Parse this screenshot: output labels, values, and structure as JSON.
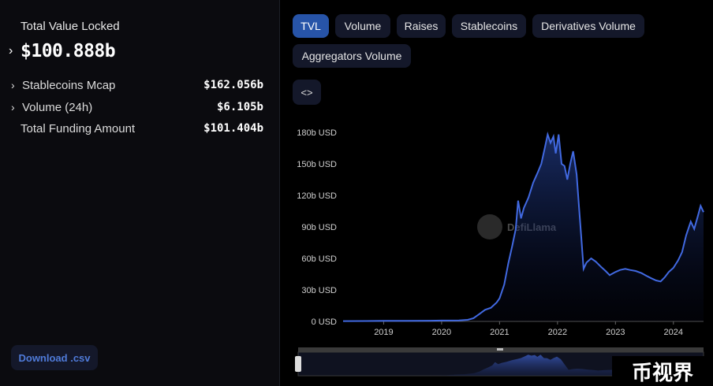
{
  "summary": {
    "tvl_label": "Total Value Locked",
    "tvl_value": "$100.888b",
    "rows": [
      {
        "label": "Stablecoins Mcap",
        "value": "$162.056b",
        "expandable": true
      },
      {
        "label": "Volume (24h)",
        "value": "$6.105b",
        "expandable": true
      },
      {
        "label": "Total Funding Amount",
        "value": "$101.404b",
        "expandable": false
      }
    ],
    "download_label": "Download .csv"
  },
  "tabs": [
    {
      "label": "TVL",
      "active": true
    },
    {
      "label": "Volume",
      "active": false
    },
    {
      "label": "Raises",
      "active": false
    },
    {
      "label": "Stablecoins",
      "active": false
    },
    {
      "label": "Derivatives Volume",
      "active": false
    },
    {
      "label": "Aggregators Volume",
      "active": false
    }
  ],
  "embed_label": "<>",
  "watermark": "DefiLlama",
  "badge": "币视界",
  "colors": {
    "line": "#4169e1",
    "accent": "#2754a8",
    "panel": "#0b0b0f"
  },
  "chart_data": {
    "type": "area",
    "y_unit": "USD",
    "ylim": [
      0,
      180
    ],
    "y_ticks": [
      "0 USD",
      "30b USD",
      "60b USD",
      "90b USD",
      "120b USD",
      "150b USD",
      "180b USD"
    ],
    "x_ticks": [
      "2019",
      "2020",
      "2021",
      "2022",
      "2023",
      "2024"
    ],
    "series": [
      {
        "values_b_usd": [
          [
            2018.3,
            0.3
          ],
          [
            2018.7,
            0.4
          ],
          [
            2019.0,
            0.5
          ],
          [
            2019.4,
            0.6
          ],
          [
            2019.8,
            0.7
          ],
          [
            2020.0,
            0.8
          ],
          [
            2020.3,
            0.9
          ],
          [
            2020.45,
            1.5
          ],
          [
            2020.55,
            3
          ],
          [
            2020.65,
            7
          ],
          [
            2020.75,
            11
          ],
          [
            2020.85,
            13
          ],
          [
            2020.95,
            18
          ],
          [
            2021.0,
            22
          ],
          [
            2021.08,
            35
          ],
          [
            2021.15,
            55
          ],
          [
            2021.22,
            72
          ],
          [
            2021.28,
            88
          ],
          [
            2021.32,
            115
          ],
          [
            2021.37,
            98
          ],
          [
            2021.42,
            108
          ],
          [
            2021.5,
            118
          ],
          [
            2021.58,
            132
          ],
          [
            2021.66,
            142
          ],
          [
            2021.72,
            150
          ],
          [
            2021.78,
            165
          ],
          [
            2021.83,
            178
          ],
          [
            2021.88,
            170
          ],
          [
            2021.93,
            176
          ],
          [
            2021.97,
            160
          ],
          [
            2022.02,
            178
          ],
          [
            2022.07,
            150
          ],
          [
            2022.12,
            148
          ],
          [
            2022.17,
            135
          ],
          [
            2022.22,
            150
          ],
          [
            2022.27,
            162
          ],
          [
            2022.33,
            140
          ],
          [
            2022.37,
            110
          ],
          [
            2022.41,
            80
          ],
          [
            2022.45,
            50
          ],
          [
            2022.5,
            56
          ],
          [
            2022.58,
            60
          ],
          [
            2022.66,
            57
          ],
          [
            2022.75,
            52
          ],
          [
            2022.83,
            48
          ],
          [
            2022.9,
            44
          ],
          [
            2023.0,
            47
          ],
          [
            2023.08,
            49
          ],
          [
            2023.17,
            50
          ],
          [
            2023.25,
            49
          ],
          [
            2023.35,
            48
          ],
          [
            2023.45,
            46
          ],
          [
            2023.55,
            43
          ],
          [
            2023.62,
            41
          ],
          [
            2023.7,
            39
          ],
          [
            2023.78,
            38
          ],
          [
            2023.85,
            42
          ],
          [
            2023.92,
            47
          ],
          [
            2024.0,
            51
          ],
          [
            2024.08,
            58
          ],
          [
            2024.15,
            66
          ],
          [
            2024.22,
            82
          ],
          [
            2024.3,
            95
          ],
          [
            2024.36,
            88
          ],
          [
            2024.42,
            100
          ],
          [
            2024.47,
            110
          ],
          [
            2024.52,
            104
          ]
        ]
      }
    ],
    "grid": false
  }
}
